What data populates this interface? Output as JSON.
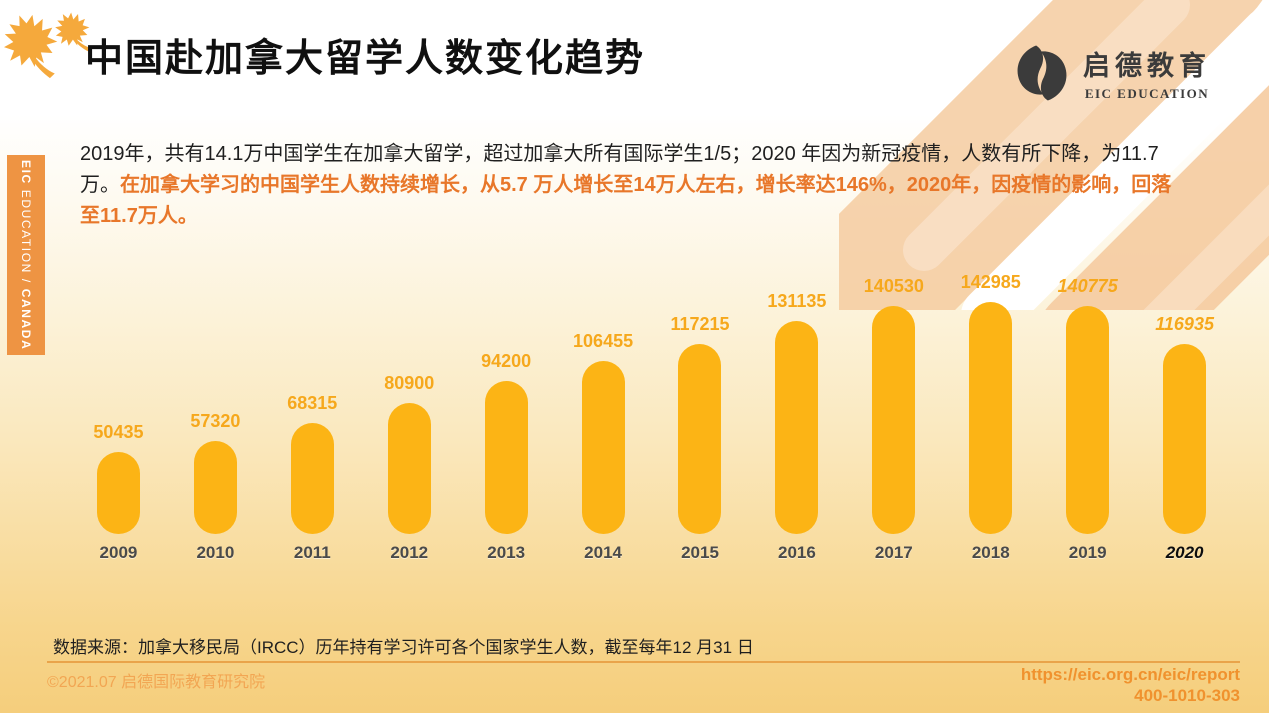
{
  "header": {
    "title": "中国赴加拿大留学人数变化趋势"
  },
  "logo": {
    "cn": "启德教育",
    "en": "EIC EDUCATION"
  },
  "sidebar": {
    "bold_prefix": "EIC",
    "middle": " EDUCATION / ",
    "bold_suffix": "CANADA"
  },
  "intro": {
    "black_part": "2019年，共有14.1万中国学生在加拿大留学，超过加拿大所有国际学生1/5；2020 年因为新冠疫情，人数有所下降，为11.7 万。",
    "orange_part": "在加拿大学习的中国学生人数持续增长，从5.7 万人增长至14万人左右，增长率达146%，2020年，因疫情的影响，回落至11.7万人。"
  },
  "chart_data": {
    "type": "bar",
    "title": "中国赴加拿大留学人数变化趋势",
    "xlabel": "",
    "ylabel": "",
    "categories": [
      "2009",
      "2010",
      "2011",
      "2012",
      "2013",
      "2014",
      "2015",
      "2016",
      "2017",
      "2018",
      "2019",
      "2020"
    ],
    "values": [
      50435,
      57320,
      68315,
      80900,
      94200,
      106455,
      117215,
      131135,
      140530,
      142985,
      140775,
      116935
    ],
    "ylim": [
      0,
      150000
    ],
    "grid": false,
    "legend": "none",
    "data_labels": true,
    "bar_color": "#fcb415",
    "value_label_color": "#f6a81c",
    "italic_value_years": [
      "2019",
      "2020"
    ],
    "italic_axis_years": [
      "2020"
    ]
  },
  "source": {
    "text": "数据来源：加拿大移民局（IRCC）历年持有学习许可各个国家学生人数，截至每年12 月31 日"
  },
  "footer": {
    "copyright": "©2021.07 启德国际教育研究院",
    "url": "https://eic.org.cn/eic/report",
    "phone": "400-1010-303"
  },
  "colors": {
    "accent_orange": "#e8772a",
    "sidebar_orange": "#ee9443",
    "bar_gold": "#fcb415",
    "footer_orange": "#f0922e",
    "decor_peach": "#f5cba0"
  }
}
